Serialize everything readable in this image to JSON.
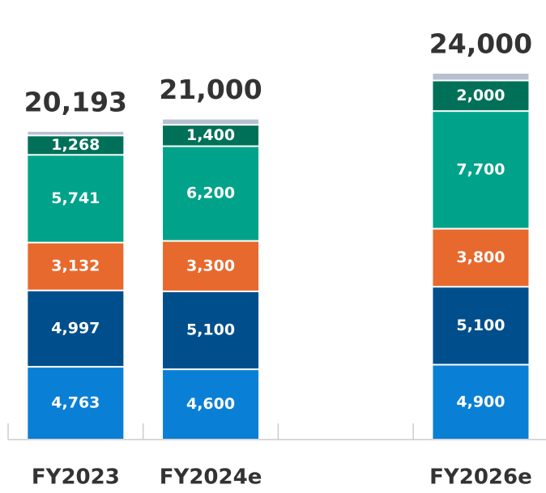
{
  "chart_data": {
    "type": "stacked_bar",
    "categories": [
      "FY2023",
      "FY2024e",
      null,
      "FY2026e"
    ],
    "series": [
      {
        "color": "#0a7fd6",
        "values": [
          4763,
          4600,
          null,
          4900
        ],
        "value_labels": [
          "4,763",
          "4,600",
          null,
          "4,900"
        ]
      },
      {
        "color": "#004f8c",
        "values": [
          4997,
          5100,
          null,
          5100
        ],
        "value_labels": [
          "4,997",
          "5,100",
          null,
          "5,100"
        ]
      },
      {
        "color": "#e8692d",
        "values": [
          3132,
          3300,
          null,
          3800
        ],
        "value_labels": [
          "3,132",
          "3,300",
          null,
          "3,800"
        ]
      },
      {
        "color": "#00a389",
        "values": [
          5741,
          6200,
          null,
          7700
        ],
        "value_labels": [
          "5,741",
          "6,200",
          null,
          "7,700"
        ]
      },
      {
        "color": "#007158",
        "values": [
          1268,
          1400,
          null,
          2000
        ],
        "value_labels": [
          "1,268",
          "1,400",
          null,
          "2,000"
        ]
      },
      {
        "color": "#b8bfd0",
        "values": [
          292,
          400,
          null,
          500
        ]
      }
    ],
    "totals": [
      20193,
      21000,
      null,
      24000
    ],
    "total_labels": [
      "20,193",
      "21,000",
      null,
      "24,000"
    ]
  }
}
